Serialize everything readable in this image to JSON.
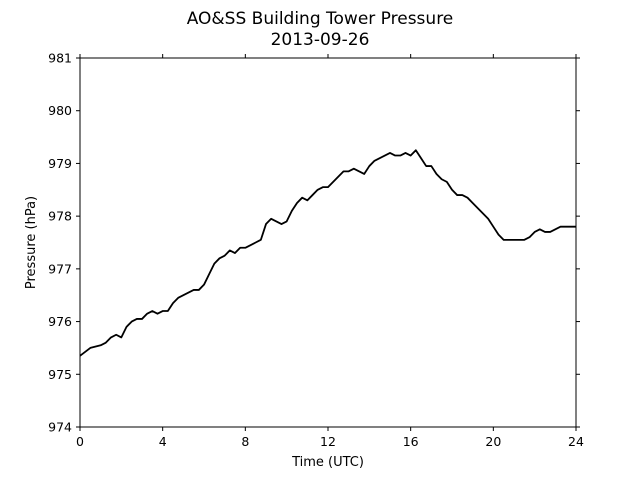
{
  "chart_data": {
    "type": "line",
    "title": "AO&SS Building Tower Pressure",
    "subtitle": "2013-09-26",
    "xlabel": "Time (UTC)",
    "ylabel": "Pressure (hPa)",
    "xlim": [
      0,
      24
    ],
    "ylim": [
      974,
      981
    ],
    "xticks": [
      0,
      4,
      8,
      12,
      16,
      20,
      24
    ],
    "yticks": [
      974,
      975,
      976,
      977,
      978,
      979,
      980,
      981
    ],
    "grid": false,
    "legend": "none",
    "line_color": "#000000",
    "series": [
      {
        "x": [
          0.0,
          0.5,
          1.0,
          1.25,
          1.5,
          1.75,
          2.0,
          2.25,
          2.5,
          2.75,
          3.0,
          3.25,
          3.5,
          3.75,
          4.0,
          4.25,
          4.5,
          4.75,
          5.0,
          5.25,
          5.5,
          5.75,
          6.0,
          6.25,
          6.5,
          6.75,
          7.0,
          7.25,
          7.5,
          7.75,
          8.0,
          8.25,
          8.5,
          8.75,
          9.0,
          9.25,
          9.5,
          9.75,
          10.0,
          10.25,
          10.5,
          10.75,
          11.0,
          11.25,
          11.5,
          11.75,
          12.0,
          12.25,
          12.5,
          12.75,
          13.0,
          13.25,
          13.5,
          13.75,
          14.0,
          14.25,
          14.5,
          14.75,
          15.0,
          15.25,
          15.5,
          15.75,
          16.0,
          16.25,
          16.5,
          16.75,
          17.0,
          17.25,
          17.5,
          17.75,
          18.0,
          18.25,
          18.5,
          18.75,
          19.0,
          19.25,
          19.5,
          19.75,
          20.0,
          20.25,
          20.5,
          20.75,
          21.0,
          21.25,
          21.5,
          21.75,
          22.0,
          22.25,
          22.5,
          22.75,
          23.0,
          23.25,
          23.5,
          23.75,
          24.0
        ],
        "values": [
          975.35,
          975.5,
          975.55,
          975.6,
          975.7,
          975.75,
          975.7,
          975.9,
          976.0,
          976.05,
          976.05,
          976.15,
          976.2,
          976.15,
          976.2,
          976.2,
          976.35,
          976.45,
          976.5,
          976.55,
          976.6,
          976.6,
          976.7,
          976.9,
          977.1,
          977.2,
          977.25,
          977.35,
          977.3,
          977.4,
          977.4,
          977.45,
          977.5,
          977.55,
          977.85,
          977.95,
          977.9,
          977.85,
          977.9,
          978.1,
          978.25,
          978.35,
          978.3,
          978.4,
          978.5,
          978.55,
          978.55,
          978.65,
          978.75,
          978.85,
          978.85,
          978.9,
          978.85,
          978.8,
          978.95,
          979.05,
          979.1,
          979.15,
          979.2,
          979.15,
          979.15,
          979.2,
          979.15,
          979.25,
          979.1,
          978.95,
          978.95,
          978.8,
          978.7,
          978.65,
          978.5,
          978.4,
          978.4,
          978.35,
          978.25,
          978.15,
          978.05,
          977.95,
          977.8,
          977.65,
          977.55,
          977.55,
          977.55,
          977.55,
          977.55,
          977.6,
          977.7,
          977.75,
          977.7,
          977.7,
          977.75,
          977.8,
          977.8,
          977.8,
          977.8
        ]
      }
    ]
  }
}
